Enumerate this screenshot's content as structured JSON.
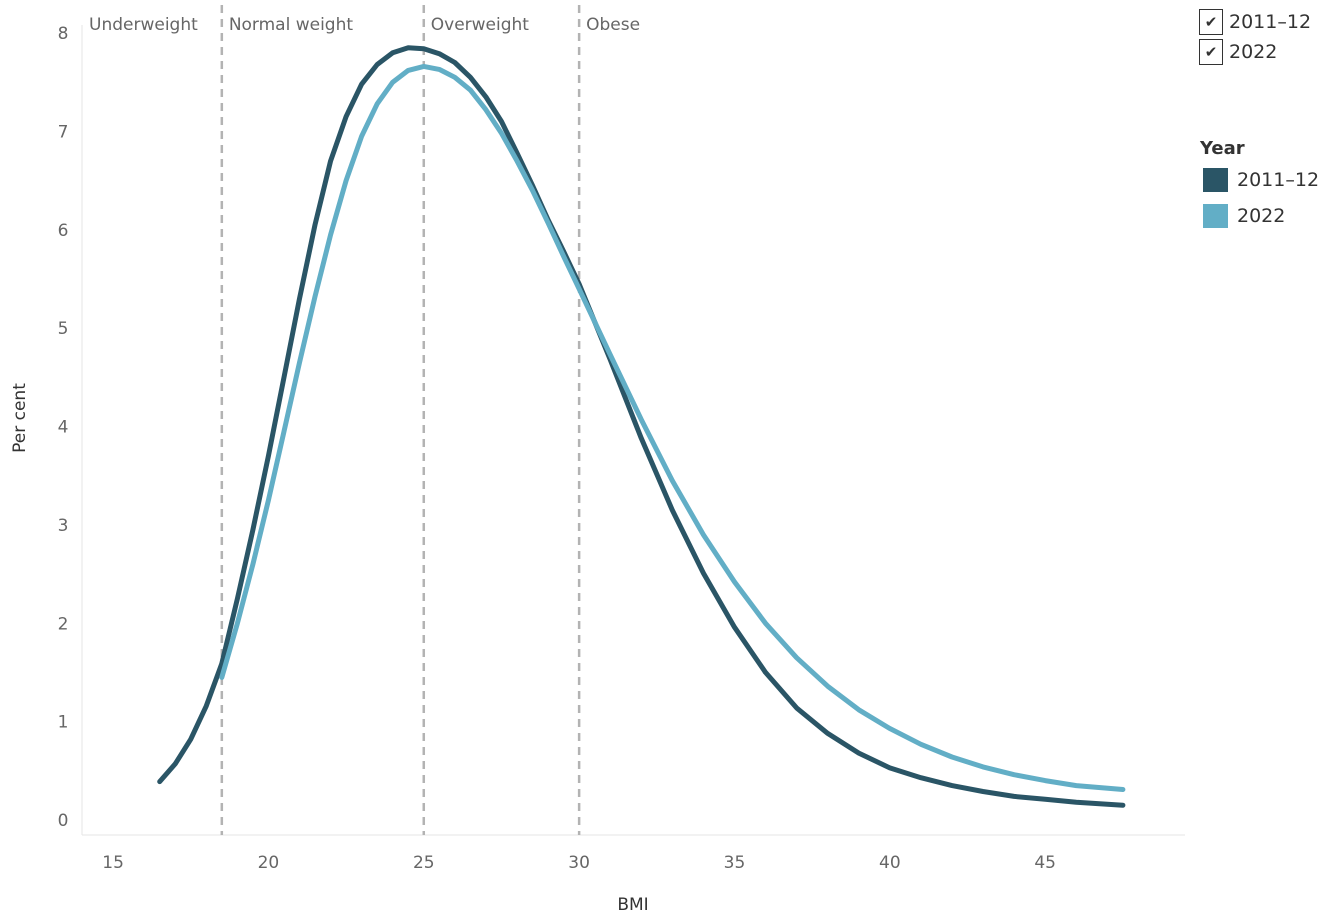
{
  "chart_data": {
    "type": "line",
    "xlabel": "BMI",
    "ylabel": "Per cent",
    "xlim": [
      14,
      49.5
    ],
    "ylim": [
      0,
      8
    ],
    "x_ticks": [
      15,
      20,
      25,
      30,
      35,
      40,
      45
    ],
    "y_ticks": [
      0,
      1,
      2,
      3,
      4,
      5,
      6,
      7,
      8
    ],
    "grid": false,
    "reference_lines": [
      {
        "x": 18.5
      },
      {
        "x": 25
      },
      {
        "x": 30
      }
    ],
    "bands": [
      {
        "label": "Underweight",
        "x": 14
      },
      {
        "label": "Normal weight",
        "x": 18.5
      },
      {
        "label": "Overweight",
        "x": 25
      },
      {
        "label": "Obese",
        "x": 30
      }
    ],
    "series": [
      {
        "name": "2011–12",
        "color": "#2a5566",
        "x": [
          16.5,
          17,
          17.5,
          18,
          18.5,
          19,
          19.5,
          20,
          20.5,
          21,
          21.5,
          22,
          22.5,
          23,
          23.5,
          24,
          24.5,
          25,
          25.5,
          26,
          26.5,
          27,
          27.5,
          28,
          28.5,
          29,
          29.5,
          30,
          31,
          32,
          33,
          34,
          35,
          36,
          37,
          38,
          39,
          40,
          41,
          42,
          43,
          44,
          45,
          46,
          47.5
        ],
        "y": [
          0.39,
          0.57,
          0.82,
          1.16,
          1.59,
          2.25,
          2.95,
          3.7,
          4.5,
          5.3,
          6.05,
          6.7,
          7.15,
          7.48,
          7.68,
          7.8,
          7.85,
          7.84,
          7.79,
          7.7,
          7.55,
          7.35,
          7.1,
          6.78,
          6.45,
          6.1,
          5.78,
          5.45,
          4.68,
          3.88,
          3.15,
          2.51,
          1.96,
          1.5,
          1.14,
          0.88,
          0.68,
          0.53,
          0.43,
          0.35,
          0.29,
          0.24,
          0.21,
          0.18,
          0.15
        ]
      },
      {
        "name": "2022",
        "color": "#62aec6",
        "x": [
          18.5,
          19,
          19.5,
          20,
          20.5,
          21,
          21.5,
          22,
          22.5,
          23,
          23.5,
          24,
          24.5,
          25,
          25.5,
          26,
          26.5,
          27,
          27.5,
          28,
          28.5,
          29,
          29.5,
          30,
          31,
          32,
          33,
          34,
          35,
          36,
          37,
          38,
          39,
          40,
          41,
          42,
          43,
          44,
          45,
          46,
          47.5
        ],
        "y": [
          1.45,
          2.0,
          2.6,
          3.25,
          3.95,
          4.65,
          5.32,
          5.95,
          6.5,
          6.95,
          7.28,
          7.5,
          7.62,
          7.66,
          7.63,
          7.55,
          7.42,
          7.22,
          6.98,
          6.7,
          6.4,
          6.07,
          5.73,
          5.4,
          4.73,
          4.07,
          3.45,
          2.9,
          2.42,
          2.0,
          1.65,
          1.36,
          1.12,
          0.93,
          0.77,
          0.64,
          0.54,
          0.46,
          0.4,
          0.35,
          0.31
        ]
      }
    ]
  },
  "filter": {
    "items": [
      {
        "label": "2011–12",
        "checked": true,
        "mark": "✔"
      },
      {
        "label": "2022",
        "checked": true,
        "mark": "✔"
      }
    ]
  },
  "legend": {
    "title": "Year",
    "items": [
      {
        "label": "2011–12",
        "color": "#2a5566"
      },
      {
        "label": "2022",
        "color": "#62aec6"
      }
    ]
  }
}
